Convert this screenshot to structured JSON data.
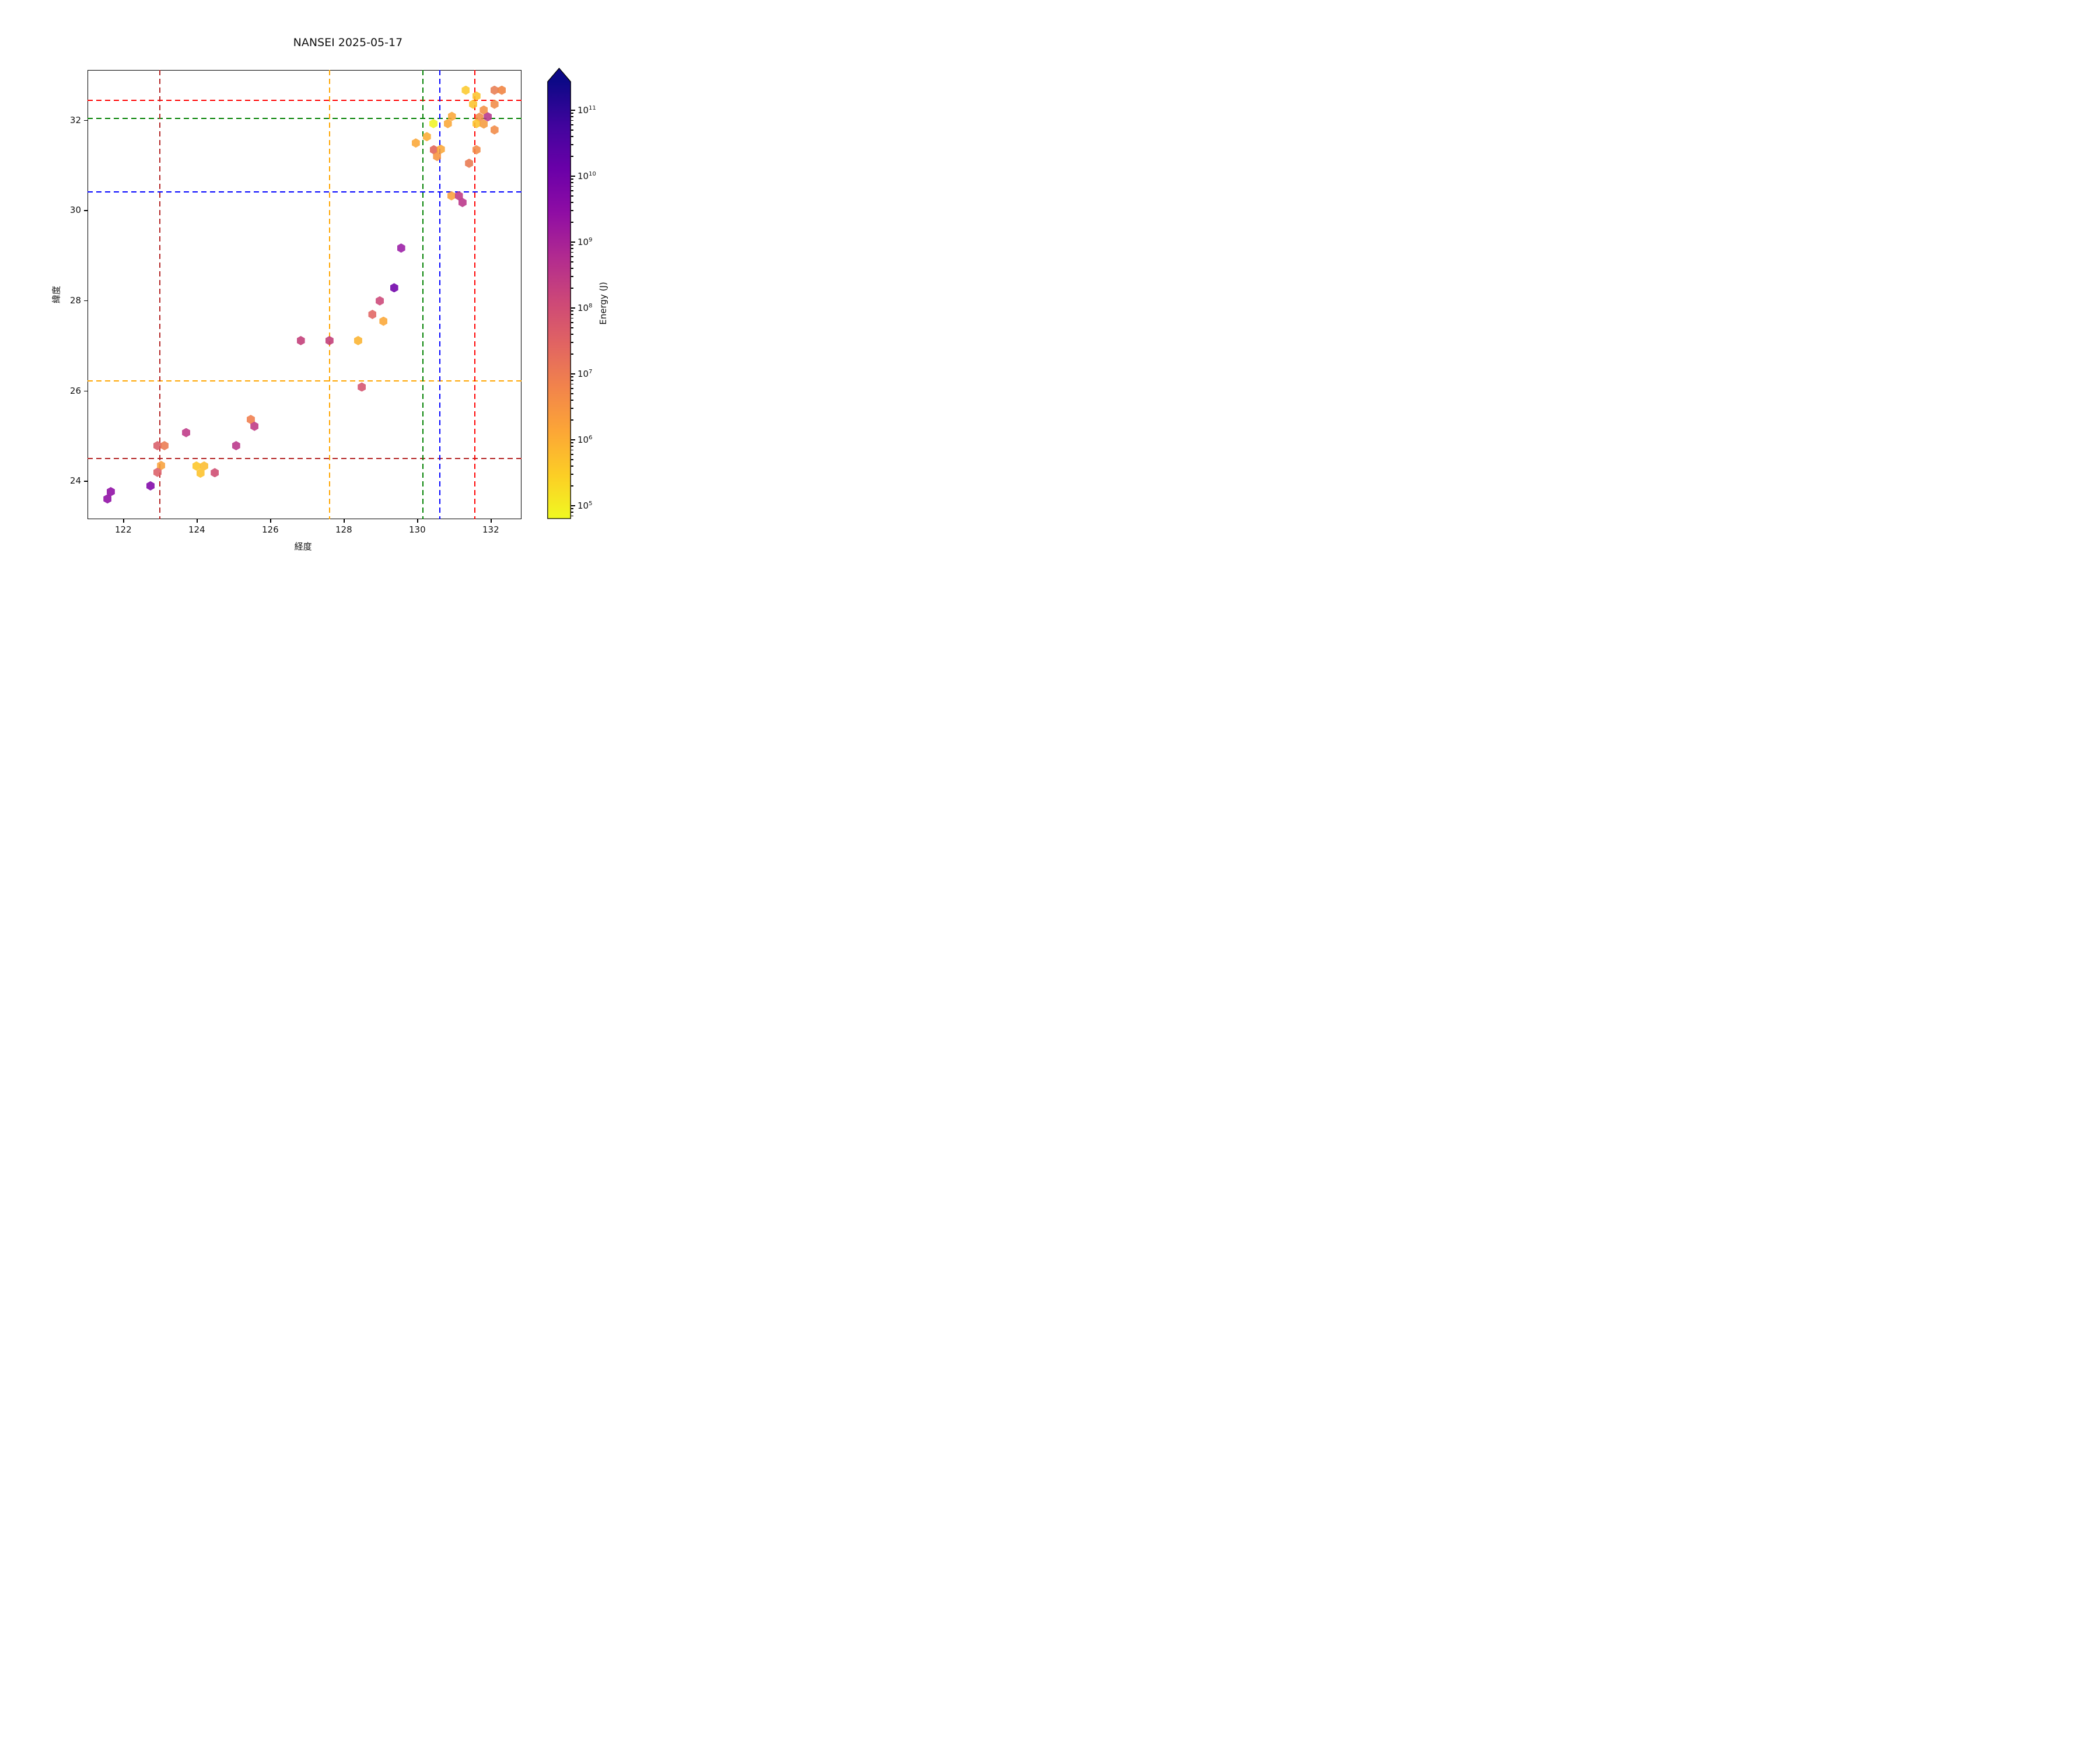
{
  "title": "NANSEI 2025-05-17",
  "axes": {
    "x": {
      "label": "経度",
      "ticks": [
        122,
        124,
        126,
        128,
        130,
        132
      ],
      "min": 121.03,
      "max": 132.93
    },
    "y": {
      "label": "緯度",
      "ticks": [
        24,
        26,
        28,
        30,
        32
      ],
      "min": 23.15,
      "max": 33.09
    }
  },
  "colorbar": {
    "label": "Energy (J)",
    "scale": "log",
    "tick_exponents": [
      5,
      6,
      7,
      8,
      9,
      10,
      11
    ],
    "range_exponent_min": 4.8,
    "range_exponent_max": 11.43,
    "extend": "max-arrow-top",
    "colormap": "plasma-reversed (yellow = low energy, dark blue = high energy)",
    "gradient_stops": [
      "#0D0887",
      "#41049D",
      "#6A00A8",
      "#8F0DA4",
      "#B12A90",
      "#CC4778",
      "#E16462",
      "#F2844B",
      "#FCA636",
      "#FCCE25",
      "#F0F921"
    ]
  },
  "reference_lines": {
    "vertical": [
      {
        "lon": 123.0,
        "color": "#B22222"
      },
      {
        "lon": 127.62,
        "color": "#FFA500"
      },
      {
        "lon": 130.15,
        "color": "#008000"
      },
      {
        "lon": 130.62,
        "color": "#0000FF"
      },
      {
        "lon": 131.57,
        "color": "#FF0000"
      }
    ],
    "horizontal": [
      {
        "lat": 32.43,
        "color": "#FF0000"
      },
      {
        "lat": 32.03,
        "color": "#008000"
      },
      {
        "lat": 30.4,
        "color": "#0000FF"
      },
      {
        "lat": 26.22,
        "color": "#FFA500"
      },
      {
        "lat": 24.49,
        "color": "#B22222"
      }
    ]
  },
  "chart_data": {
    "type": "scatter",
    "marker": "hexagon",
    "xlabel": "経度",
    "ylabel": "緯度",
    "color_encodes": "Energy (J), log scale 1e5–1e11, plasma reversed",
    "points": [
      {
        "lon": 131.32,
        "lat": 32.66,
        "color": "#FCCA2C",
        "energy_j": 300000.0
      },
      {
        "lon": 132.1,
        "lat": 32.66,
        "color": "#E87D52",
        "energy_j": 12000000.0
      },
      {
        "lon": 132.3,
        "lat": 32.66,
        "color": "#F0823F",
        "energy_j": 5000000.0
      },
      {
        "lon": 131.61,
        "lat": 32.53,
        "color": "#FCC32B",
        "energy_j": 300000.0
      },
      {
        "lon": 131.52,
        "lat": 32.35,
        "color": "#FCC32B",
        "energy_j": 300000.0
      },
      {
        "lon": 132.1,
        "lat": 32.35,
        "color": "#F08A45",
        "energy_j": 4000000.0
      },
      {
        "lon": 131.81,
        "lat": 32.22,
        "color": "#F39144",
        "energy_j": 3000000.0
      },
      {
        "lon": 131.69,
        "lat": 32.06,
        "color": "#F18C47",
        "energy_j": 4000000.0
      },
      {
        "lon": 131.92,
        "lat": 32.07,
        "color": "#B5368B",
        "energy_j": 450000000.0
      },
      {
        "lon": 131.61,
        "lat": 31.92,
        "color": "#FCC32B",
        "energy_j": 300000.0
      },
      {
        "lon": 131.81,
        "lat": 31.91,
        "color": "#F59B3D",
        "energy_j": 2000000.0
      },
      {
        "lon": 132.1,
        "lat": 31.78,
        "color": "#F18A46",
        "energy_j": 4000000.0
      },
      {
        "lon": 130.94,
        "lat": 32.08,
        "color": "#FBA636",
        "energy_j": 1300000.0
      },
      {
        "lon": 130.83,
        "lat": 31.92,
        "color": "#FBA636",
        "energy_j": 1300000.0
      },
      {
        "lon": 130.44,
        "lat": 31.92,
        "color": "#F0F425",
        "energy_j": 100000.0
      },
      {
        "lon": 130.26,
        "lat": 31.63,
        "color": "#FBAC33",
        "energy_j": 900000.0
      },
      {
        "lon": 129.96,
        "lat": 31.49,
        "color": "#FBA636",
        "energy_j": 1300000.0
      },
      {
        "lon": 130.45,
        "lat": 31.34,
        "color": "#E06155",
        "energy_j": 30000000.0
      },
      {
        "lon": 130.64,
        "lat": 31.35,
        "color": "#FBA636",
        "energy_j": 1300000.0
      },
      {
        "lon": 130.54,
        "lat": 31.19,
        "color": "#F6933E",
        "energy_j": 2500000.0
      },
      {
        "lon": 131.61,
        "lat": 31.34,
        "color": "#F18A46",
        "energy_j": 4000000.0
      },
      {
        "lon": 131.41,
        "lat": 31.04,
        "color": "#E8784F",
        "energy_j": 12000000.0
      },
      {
        "lon": 130.93,
        "lat": 30.32,
        "color": "#F9A03A",
        "energy_j": 1300000.0
      },
      {
        "lon": 131.13,
        "lat": 30.32,
        "color": "#BE3884",
        "energy_j": 350000000.0
      },
      {
        "lon": 131.23,
        "lat": 30.17,
        "color": "#B93489",
        "energy_j": 450000000.0
      },
      {
        "lon": 129.56,
        "lat": 29.16,
        "color": "#9A1BA5",
        "energy_j": 2000000000.0
      },
      {
        "lon": 129.37,
        "lat": 28.28,
        "color": "#6E00A8",
        "energy_j": 13000000000.0
      },
      {
        "lon": 128.98,
        "lat": 27.99,
        "color": "#CC4778",
        "energy_j": 130000000.0
      },
      {
        "lon": 128.78,
        "lat": 27.69,
        "color": "#E16462",
        "energy_j": 30000000.0
      },
      {
        "lon": 129.08,
        "lat": 27.54,
        "color": "#FBA636",
        "energy_j": 1300000.0
      },
      {
        "lon": 128.39,
        "lat": 27.11,
        "color": "#FBB32F",
        "energy_j": 700000.0
      },
      {
        "lon": 126.83,
        "lat": 27.11,
        "color": "#C23B76",
        "energy_j": 250000000.0
      },
      {
        "lon": 127.61,
        "lat": 27.11,
        "color": "#C23B76",
        "energy_j": 250000000.0
      },
      {
        "lon": 128.49,
        "lat": 26.08,
        "color": "#D5536F",
        "energy_j": 80000000.0
      },
      {
        "lon": 123.71,
        "lat": 25.07,
        "color": "#BE3886",
        "energy_j": 350000000.0
      },
      {
        "lon": 125.47,
        "lat": 25.36,
        "color": "#F07C4B",
        "energy_j": 7000000.0
      },
      {
        "lon": 125.57,
        "lat": 25.21,
        "color": "#BE3883",
        "energy_j": 350000000.0
      },
      {
        "lon": 122.93,
        "lat": 24.78,
        "color": "#D85C68",
        "energy_j": 50000000.0
      },
      {
        "lon": 123.12,
        "lat": 24.78,
        "color": "#EB7A50",
        "energy_j": 12000000.0
      },
      {
        "lon": 125.07,
        "lat": 24.78,
        "color": "#B93489",
        "energy_j": 450000000.0
      },
      {
        "lon": 123.03,
        "lat": 24.34,
        "color": "#F8A13A",
        "energy_j": 1300000.0
      },
      {
        "lon": 122.93,
        "lat": 24.19,
        "color": "#DC5E66",
        "energy_j": 50000000.0
      },
      {
        "lon": 123.99,
        "lat": 24.33,
        "color": "#FDC627",
        "energy_j": 300000.0
      },
      {
        "lon": 124.2,
        "lat": 24.33,
        "color": "#FCBC2D",
        "energy_j": 450000.0
      },
      {
        "lon": 124.1,
        "lat": 24.17,
        "color": "#FDC229",
        "energy_j": 350000.0
      },
      {
        "lon": 124.49,
        "lat": 24.18,
        "color": "#CE4A70",
        "energy_j": 120000000.0
      },
      {
        "lon": 122.74,
        "lat": 23.89,
        "color": "#8004A8",
        "energy_j": 5000000000.0
      },
      {
        "lon": 121.66,
        "lat": 23.76,
        "color": "#8E0CA4",
        "energy_j": 3000000000.0
      },
      {
        "lon": 121.57,
        "lat": 23.6,
        "color": "#8E0CA4",
        "energy_j": 3000000000.0
      }
    ]
  }
}
